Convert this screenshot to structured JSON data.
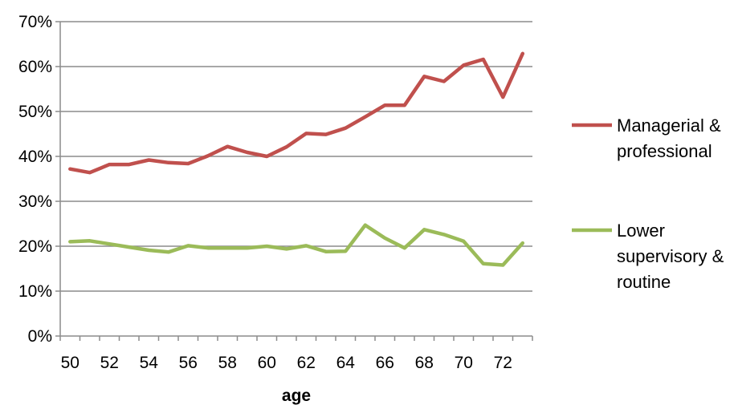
{
  "chart_data": {
    "type": "line",
    "title": "",
    "xlabel": "age",
    "ylabel": "",
    "x": [
      50,
      51,
      52,
      53,
      54,
      55,
      56,
      57,
      58,
      59,
      60,
      61,
      62,
      63,
      64,
      65,
      66,
      67,
      68,
      69,
      70,
      71,
      72,
      73
    ],
    "xticks": [
      50,
      52,
      54,
      56,
      58,
      60,
      62,
      64,
      66,
      68,
      70,
      72
    ],
    "xlim": [
      49.5,
      73.5
    ],
    "ylim": [
      0,
      70
    ],
    "yticks": [
      0,
      10,
      20,
      30,
      40,
      50,
      60,
      70
    ],
    "ytick_labels": [
      "0%",
      "10%",
      "20%",
      "30%",
      "40%",
      "50%",
      "60%",
      "70%"
    ],
    "grid": "horizontal",
    "legend_position": "right",
    "series": [
      {
        "name_lines": [
          "Managerial &",
          "professional"
        ],
        "color": "#c0504d",
        "values": [
          37.2,
          36.4,
          38.2,
          38.2,
          39.2,
          38.6,
          38.4,
          40.1,
          42.2,
          40.9,
          40.0,
          42.1,
          45.1,
          44.9,
          46.3,
          48.8,
          51.4,
          51.4,
          57.8,
          56.7,
          60.3,
          61.6,
          53.2,
          62.9
        ]
      },
      {
        "name_lines": [
          "Lower",
          "supervisory &",
          "routine"
        ],
        "color": "#9bbb59",
        "values": [
          21.0,
          21.2,
          20.5,
          19.8,
          19.1,
          18.7,
          20.1,
          19.6,
          19.6,
          19.6,
          20.0,
          19.4,
          20.1,
          18.8,
          18.9,
          24.7,
          21.8,
          19.6,
          23.7,
          22.6,
          21.1,
          16.1,
          15.8,
          20.7
        ]
      }
    ]
  }
}
